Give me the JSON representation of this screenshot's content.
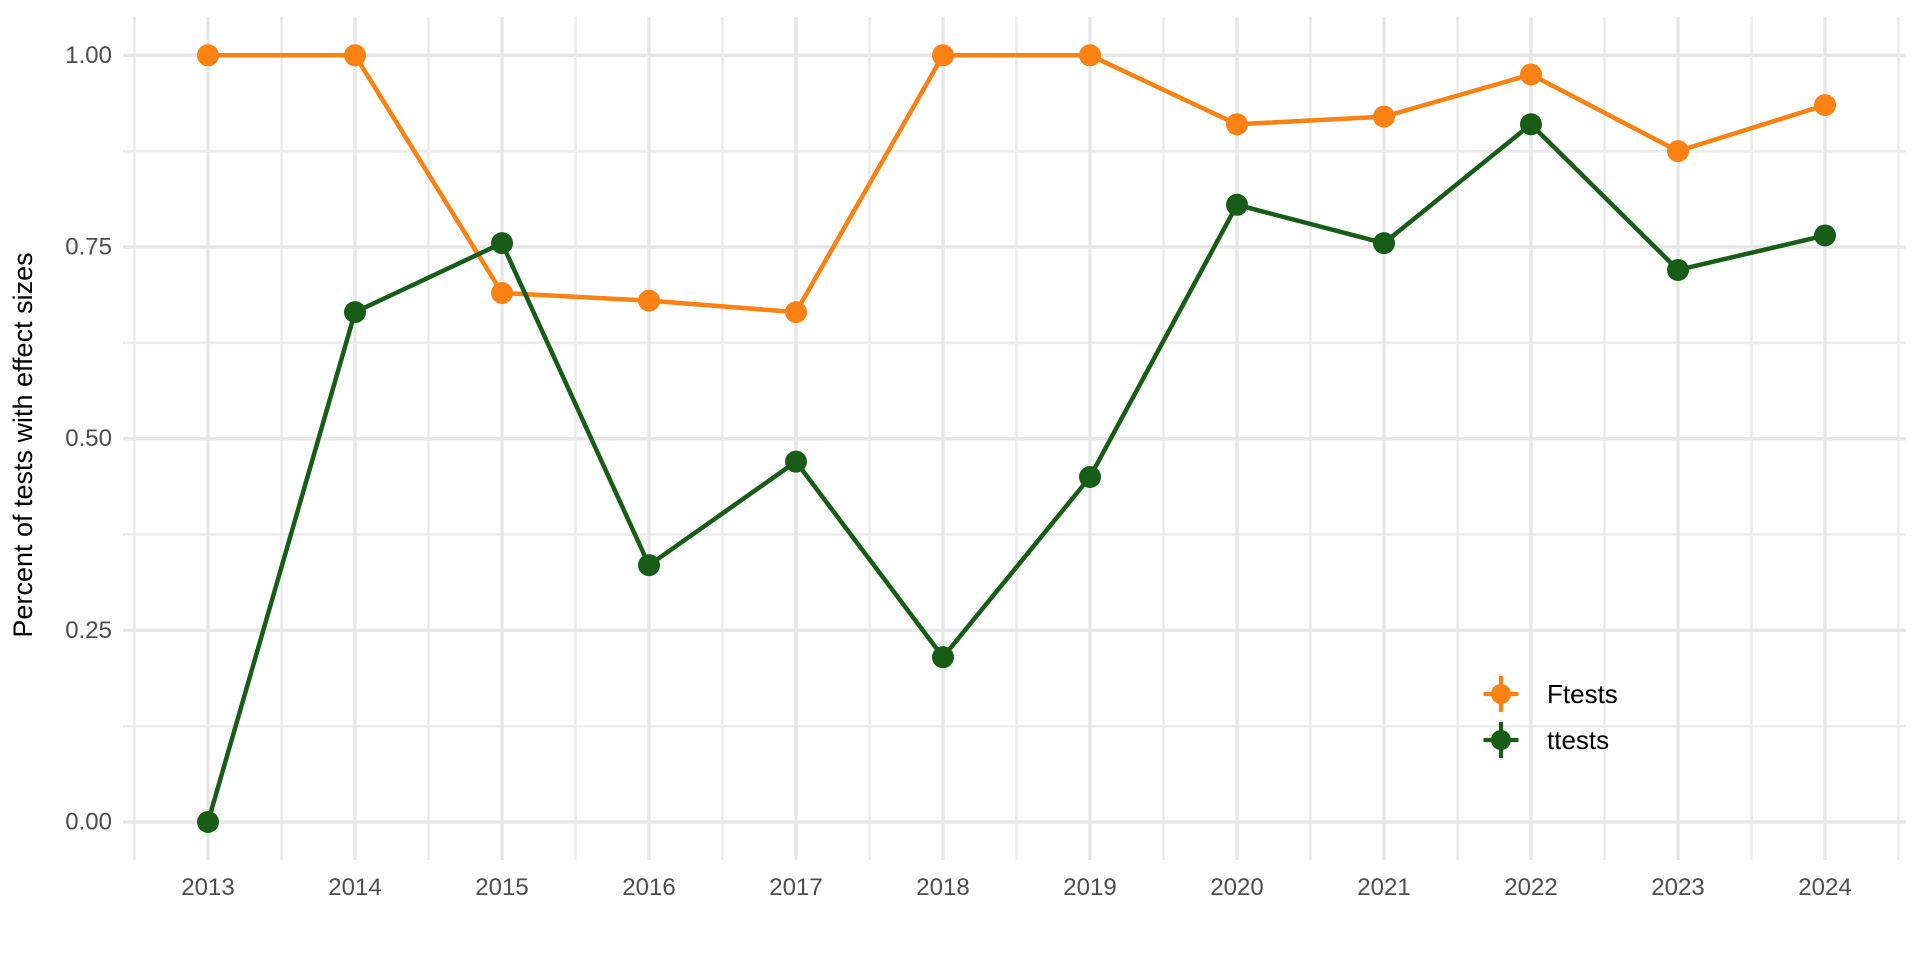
{
  "chart_data": {
    "type": "line",
    "title": "",
    "xlabel": "",
    "ylabel": "Percent of tests with effect sizes",
    "x": [
      2013,
      2014,
      2015,
      2016,
      2017,
      2018,
      2019,
      2020,
      2021,
      2022,
      2023,
      2024
    ],
    "xtick_labels": [
      "2013",
      "2014",
      "2015",
      "2016",
      "2017",
      "2018",
      "2019",
      "2020",
      "2021",
      "2022",
      "2023",
      "2024"
    ],
    "ytick_labels": [
      "0.00",
      "0.25",
      "0.50",
      "0.75",
      "1.00"
    ],
    "yticks": [
      0.0,
      0.25,
      0.5,
      0.75,
      1.0
    ],
    "ylim": [
      0,
      1
    ],
    "grid": {
      "major": true,
      "minor": true
    },
    "series": [
      {
        "name": "Ftests",
        "color": "#FA8112",
        "values": [
          1.0,
          1.0,
          0.69,
          0.68,
          0.665,
          1.0,
          1.0,
          0.91,
          0.92,
          0.975,
          0.875,
          0.935
        ]
      },
      {
        "name": "ttests",
        "color": "#175D17",
        "values": [
          0.0,
          0.665,
          0.755,
          0.335,
          0.47,
          0.215,
          0.45,
          0.805,
          0.755,
          0.91,
          0.72,
          0.765
        ]
      }
    ],
    "legend": {
      "position": "inside-right",
      "items": [
        "Ftests",
        "ttests"
      ]
    }
  },
  "style": {
    "background": "#FFFFFF",
    "grid_major_color": "#E7E7E7",
    "grid_minor_color": "#ECECEC",
    "tick_label_color": "#4D4D4D",
    "axis_title_color": "#000000",
    "legend_text_color": "#000000"
  }
}
